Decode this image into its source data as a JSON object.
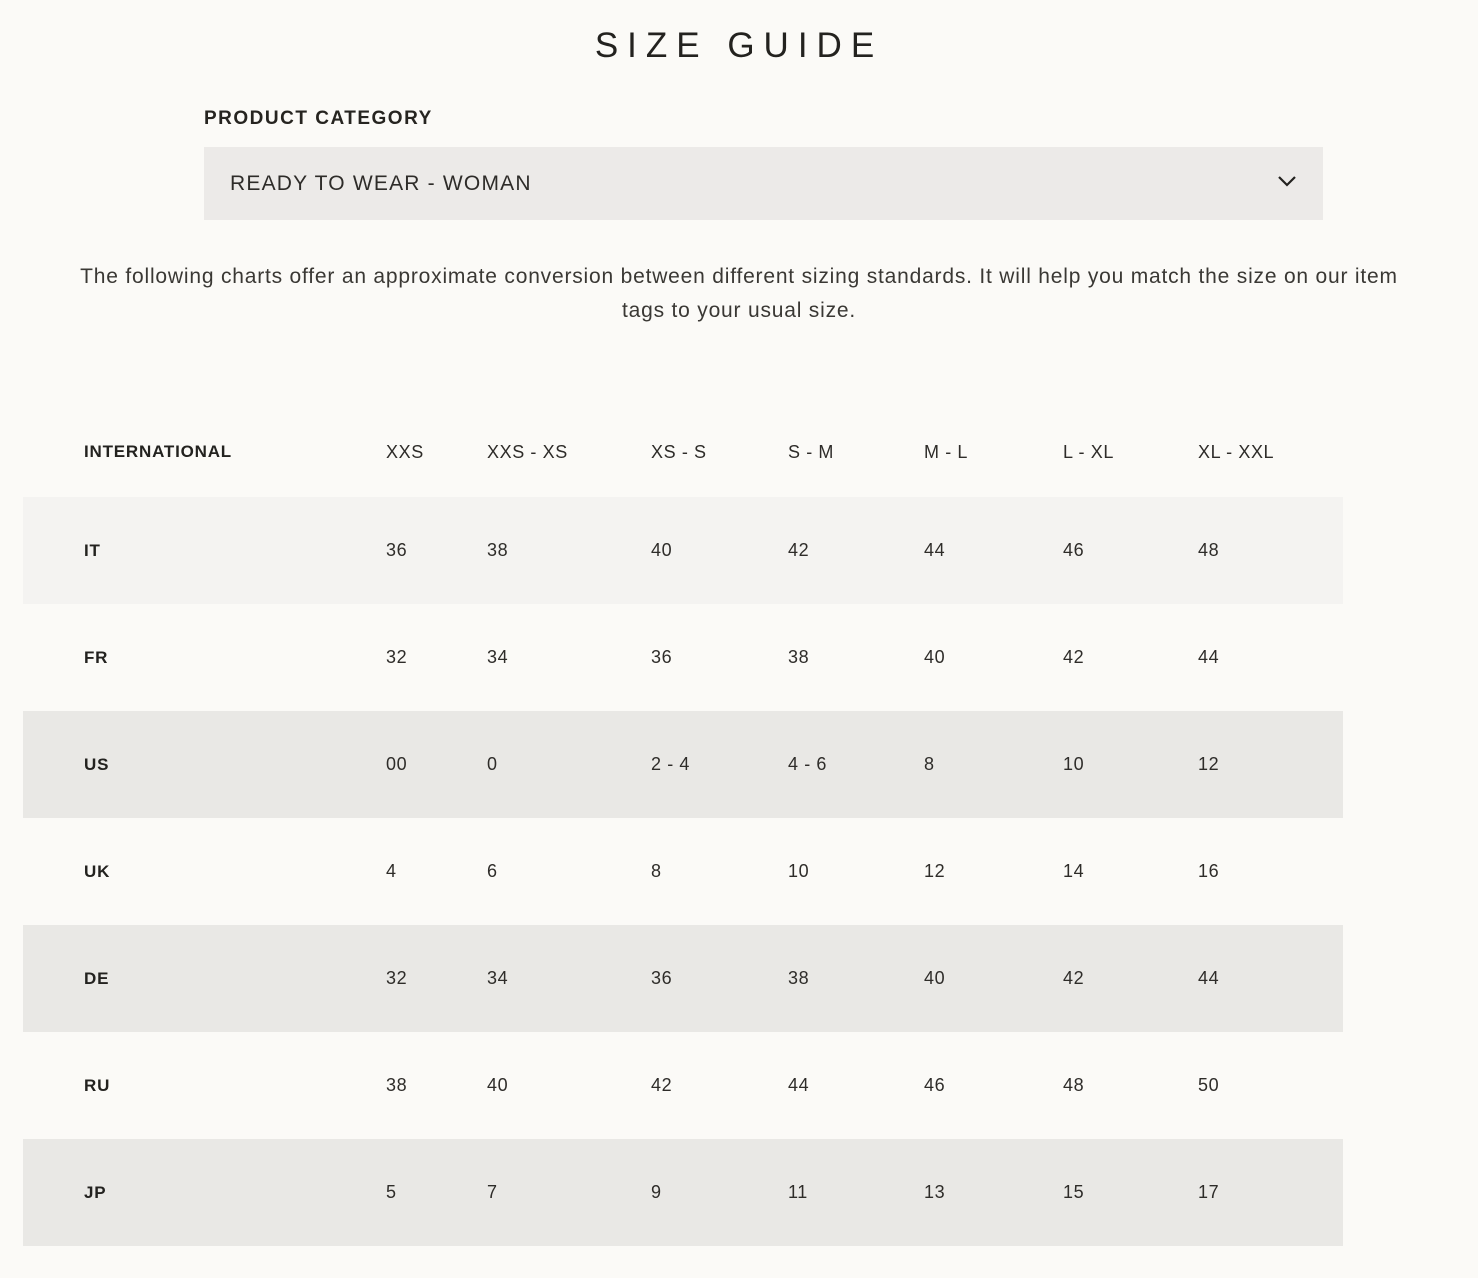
{
  "page": {
    "title": "SIZE GUIDE"
  },
  "category": {
    "label": "PRODUCT CATEGORY",
    "selected_value": "READY TO WEAR - WOMAN",
    "chevron_icon": "chevron-down-icon"
  },
  "intro": {
    "text": "The following charts offer an approximate conversion between different sizing standards. It will help you match the size on our item tags to your usual size."
  },
  "size_table": {
    "header_label": "INTERNATIONAL",
    "columns": [
      "XXS",
      "XXS - XS",
      "XS - S",
      "S - M",
      "M - L",
      "L - XL",
      "XL - XXL"
    ],
    "rows": [
      {
        "label": "IT",
        "values": [
          "36",
          "38",
          "40",
          "42",
          "44",
          "46",
          "48"
        ]
      },
      {
        "label": "FR",
        "values": [
          "32",
          "34",
          "36",
          "38",
          "40",
          "42",
          "44"
        ]
      },
      {
        "label": "US",
        "values": [
          "00",
          "0",
          "2 - 4",
          "4 - 6",
          "8",
          "10",
          "12"
        ]
      },
      {
        "label": "UK",
        "values": [
          "4",
          "6",
          "8",
          "10",
          "12",
          "14",
          "16"
        ]
      },
      {
        "label": "DE",
        "values": [
          "32",
          "34",
          "36",
          "38",
          "40",
          "42",
          "44"
        ]
      },
      {
        "label": "RU",
        "values": [
          "38",
          "40",
          "42",
          "44",
          "46",
          "48",
          "50"
        ]
      },
      {
        "label": "JP",
        "values": [
          "5",
          "7",
          "9",
          "11",
          "13",
          "15",
          "17"
        ]
      }
    ]
  },
  "colors": {
    "page_background": "#fbfaf7",
    "dropdown_background": "#eceae8",
    "row_stripe": "#e9e8e5",
    "row_stripe_first": "#f4f3f1",
    "text_primary": "#23221f"
  }
}
